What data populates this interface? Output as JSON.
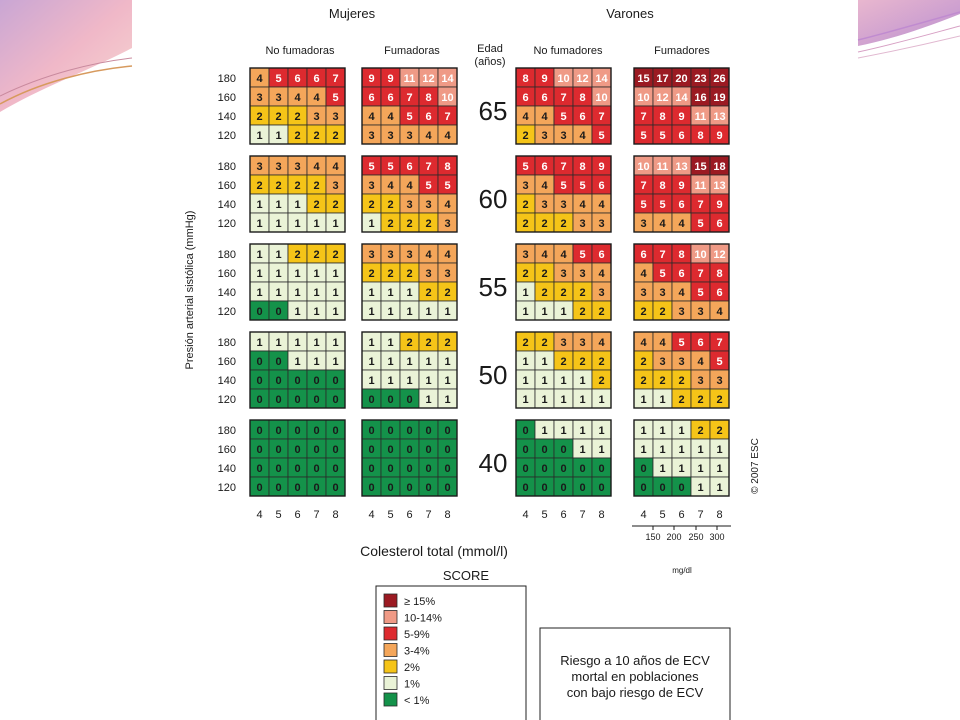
{
  "chart_data": {
    "type": "heatmap",
    "groups": [
      {
        "label": "Mujeres",
        "subgroups": [
          "No fumadoras",
          "Fumadoras"
        ]
      },
      {
        "label": "Varones",
        "subgroups": [
          "No fumadores",
          "Fumadores"
        ]
      }
    ],
    "age_header": [
      "Edad",
      "(años)"
    ],
    "ylabel": "Presión arterial sistólica (mmHg)",
    "xlabel": "Colesterol total (mmol/l)",
    "sbp_levels": [
      "180",
      "160",
      "140",
      "120"
    ],
    "chol_ticks": [
      "4",
      "5",
      "6",
      "7",
      "8"
    ],
    "mgdl_ticks": [
      "150",
      "200",
      "250",
      "300"
    ],
    "mgdl_label": "mg/dl",
    "copyright": "© 2007 ESC",
    "blocks": [
      {
        "age": "65",
        "panels": [
          [
            [
              4,
              5,
              6,
              6,
              7
            ],
            [
              3,
              3,
              4,
              4,
              5
            ],
            [
              2,
              2,
              2,
              3,
              3
            ],
            [
              1,
              1,
              2,
              2,
              2
            ]
          ],
          [
            [
              9,
              9,
              11,
              12,
              14
            ],
            [
              6,
              6,
              7,
              8,
              10
            ],
            [
              4,
              4,
              5,
              6,
              7
            ],
            [
              3,
              3,
              3,
              4,
              4
            ]
          ],
          [
            [
              8,
              9,
              10,
              12,
              14
            ],
            [
              6,
              6,
              7,
              8,
              10
            ],
            [
              4,
              4,
              5,
              6,
              7
            ],
            [
              2,
              3,
              3,
              4,
              5
            ]
          ],
          [
            [
              15,
              17,
              20,
              23,
              26
            ],
            [
              10,
              12,
              14,
              16,
              19
            ],
            [
              7,
              8,
              9,
              11,
              13
            ],
            [
              5,
              5,
              6,
              8,
              9
            ]
          ]
        ]
      },
      {
        "age": "60",
        "panels": [
          [
            [
              3,
              3,
              3,
              4,
              4
            ],
            [
              2,
              2,
              2,
              2,
              3
            ],
            [
              1,
              1,
              1,
              2,
              2
            ],
            [
              1,
              1,
              1,
              1,
              1
            ]
          ],
          [
            [
              5,
              5,
              6,
              7,
              8
            ],
            [
              3,
              4,
              4,
              5,
              5
            ],
            [
              2,
              2,
              3,
              3,
              4
            ],
            [
              1,
              2,
              2,
              2,
              3
            ]
          ],
          [
            [
              5,
              6,
              7,
              8,
              9
            ],
            [
              3,
              4,
              5,
              5,
              6
            ],
            [
              2,
              3,
              3,
              4,
              4
            ],
            [
              2,
              2,
              2,
              3,
              3
            ]
          ],
          [
            [
              10,
              11,
              13,
              15,
              18
            ],
            [
              7,
              8,
              9,
              11,
              13
            ],
            [
              5,
              5,
              6,
              7,
              9
            ],
            [
              3,
              4,
              4,
              5,
              6
            ]
          ]
        ]
      },
      {
        "age": "55",
        "panels": [
          [
            [
              1,
              1,
              2,
              2,
              2
            ],
            [
              1,
              1,
              1,
              1,
              1
            ],
            [
              1,
              1,
              1,
              1,
              1
            ],
            [
              0,
              0,
              1,
              1,
              1
            ]
          ],
          [
            [
              3,
              3,
              3,
              4,
              4
            ],
            [
              2,
              2,
              2,
              3,
              3
            ],
            [
              1,
              1,
              1,
              2,
              2
            ],
            [
              1,
              1,
              1,
              1,
              1
            ]
          ],
          [
            [
              3,
              4,
              4,
              5,
              6
            ],
            [
              2,
              2,
              3,
              3,
              4
            ],
            [
              1,
              2,
              2,
              2,
              3
            ],
            [
              1,
              1,
              1,
              2,
              2
            ]
          ],
          [
            [
              6,
              7,
              8,
              10,
              12
            ],
            [
              4,
              5,
              6,
              7,
              8
            ],
            [
              3,
              3,
              4,
              5,
              6
            ],
            [
              2,
              2,
              3,
              3,
              4
            ]
          ]
        ]
      },
      {
        "age": "50",
        "panels": [
          [
            [
              1,
              1,
              1,
              1,
              1
            ],
            [
              0,
              0,
              1,
              1,
              1
            ],
            [
              0,
              0,
              0,
              0,
              0
            ],
            [
              0,
              0,
              0,
              0,
              0
            ]
          ],
          [
            [
              1,
              1,
              2,
              2,
              2
            ],
            [
              1,
              1,
              1,
              1,
              1
            ],
            [
              1,
              1,
              1,
              1,
              1
            ],
            [
              0,
              0,
              0,
              1,
              1
            ]
          ],
          [
            [
              2,
              2,
              3,
              3,
              4
            ],
            [
              1,
              1,
              2,
              2,
              2
            ],
            [
              1,
              1,
              1,
              1,
              2
            ],
            [
              1,
              1,
              1,
              1,
              1
            ]
          ],
          [
            [
              4,
              4,
              5,
              6,
              7
            ],
            [
              2,
              3,
              3,
              4,
              5
            ],
            [
              2,
              2,
              2,
              3,
              3
            ],
            [
              1,
              1,
              2,
              2,
              2
            ]
          ]
        ]
      },
      {
        "age": "40",
        "panels": [
          [
            [
              0,
              0,
              0,
              0,
              0
            ],
            [
              0,
              0,
              0,
              0,
              0
            ],
            [
              0,
              0,
              0,
              0,
              0
            ],
            [
              0,
              0,
              0,
              0,
              0
            ]
          ],
          [
            [
              0,
              0,
              0,
              0,
              0
            ],
            [
              0,
              0,
              0,
              0,
              0
            ],
            [
              0,
              0,
              0,
              0,
              0
            ],
            [
              0,
              0,
              0,
              0,
              0
            ]
          ],
          [
            [
              0,
              1,
              1,
              1,
              1
            ],
            [
              0,
              0,
              0,
              1,
              1
            ],
            [
              0,
              0,
              0,
              0,
              0
            ],
            [
              0,
              0,
              0,
              0,
              0
            ]
          ],
          [
            [
              1,
              1,
              1,
              2,
              2
            ],
            [
              1,
              1,
              1,
              1,
              1
            ],
            [
              0,
              1,
              1,
              1,
              1
            ],
            [
              0,
              0,
              0,
              1,
              1
            ]
          ]
        ]
      }
    ],
    "legend": {
      "title": "SCORE",
      "items": [
        {
          "label": "≥ 15%",
          "color": "#9b1a22"
        },
        {
          "label": "10-14%",
          "color": "#ef9a86"
        },
        {
          "label": "5-9%",
          "color": "#dd2a2f"
        },
        {
          "label": "3-4%",
          "color": "#f4a65a"
        },
        {
          "label": "2%",
          "color": "#f5c418"
        },
        {
          "label": "1%",
          "color": "#eaf3d7"
        },
        {
          "label": "< 1%",
          "color": "#14924a"
        }
      ]
    },
    "note": [
      "Riesgo a 10 años de ECV",
      "mortal en poblaciones",
      "con bajo riesgo de ECV"
    ]
  }
}
